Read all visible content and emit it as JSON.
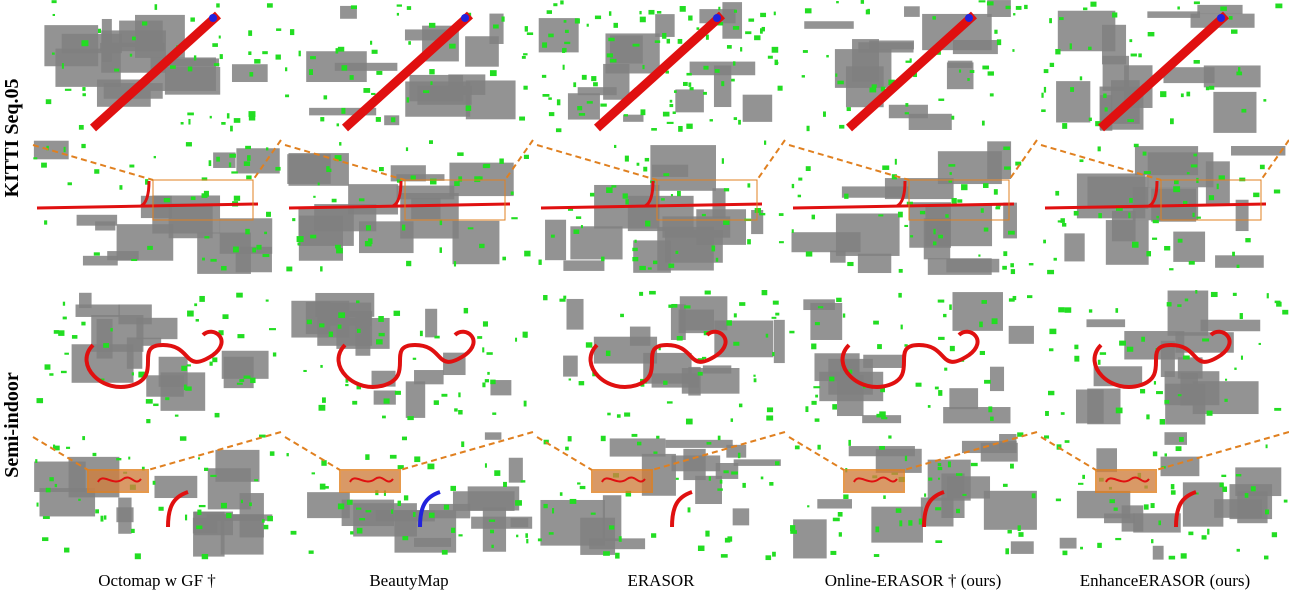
{
  "rows": [
    "KITTI Seq.05",
    "Semi-indoor"
  ],
  "columns": [
    "Octomap w GF †",
    "BeautyMap",
    "ERASOR",
    "Online-ERASOR † (ours)",
    "EnhanceERASOR (ours)"
  ]
}
